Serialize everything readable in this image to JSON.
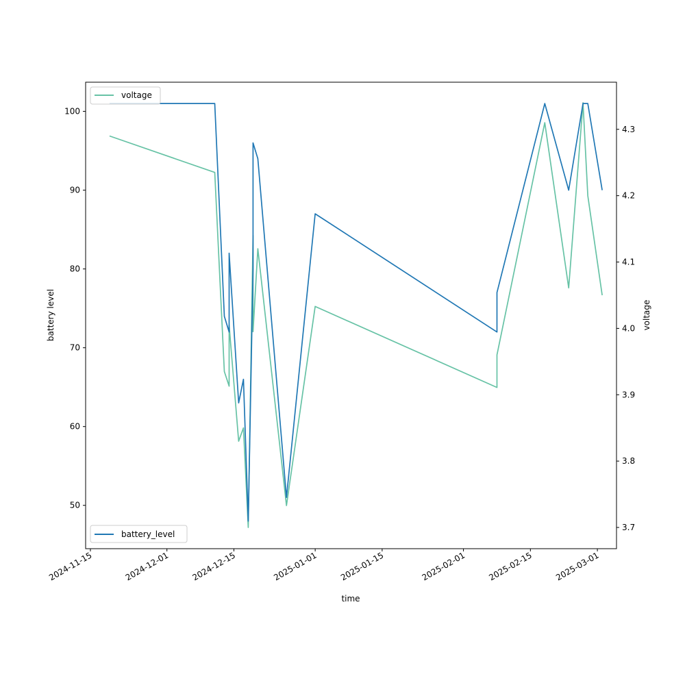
{
  "chart_data": {
    "type": "line",
    "xlabel": "time",
    "ylabel_left": "battery level",
    "ylabel_right": "voltage",
    "x_range": [
      "2024-11-14",
      "2025-03-05"
    ],
    "ylim_left": [
      44.5,
      103.7
    ],
    "ylim_right": [
      3.668,
      4.371
    ],
    "x_ticks": [
      "2024-11-15",
      "2024-12-01",
      "2024-12-15",
      "2025-01-01",
      "2025-01-15",
      "2025-02-01",
      "2025-02-15",
      "2025-03-01"
    ],
    "y_ticks_left": [
      50,
      60,
      70,
      80,
      90,
      100
    ],
    "y_ticks_right": [
      3.7,
      3.8,
      3.9,
      4.0,
      4.1,
      4.2,
      4.3
    ],
    "grid": false,
    "legend_right": {
      "label": "voltage",
      "placement": "upper-left",
      "color": "#66c2a5"
    },
    "legend_left": {
      "label": "battery_level",
      "placement": "lower-left",
      "color": "#1f77b4"
    },
    "series": [
      {
        "name": "battery_level",
        "axis": "left",
        "color": "#1f77b4",
        "points": [
          [
            "2024-11-19",
            101
          ],
          [
            "2024-12-11",
            101
          ],
          [
            "2024-12-13",
            74
          ],
          [
            "2024-12-14",
            72
          ],
          [
            "2024-12-14",
            82
          ],
          [
            "2024-12-16",
            63
          ],
          [
            "2024-12-17",
            66
          ],
          [
            "2024-12-18",
            48
          ],
          [
            "2024-12-19",
            80
          ],
          [
            "2024-12-19",
            96
          ],
          [
            "2024-12-20",
            94
          ],
          [
            "2024-12-26",
            51
          ],
          [
            "2025-01-01",
            87
          ],
          [
            "2025-02-08",
            72
          ],
          [
            "2025-02-08",
            77
          ],
          [
            "2025-02-18",
            101
          ],
          [
            "2025-02-23",
            90
          ],
          [
            "2025-02-26",
            101
          ],
          [
            "2025-02-27",
            101
          ],
          [
            "2025-03-02",
            90
          ]
        ]
      },
      {
        "name": "voltage",
        "axis": "right",
        "color": "#66c2a5",
        "points": [
          [
            "2024-11-19",
            4.29
          ],
          [
            "2024-12-11",
            4.235
          ],
          [
            "2024-12-13",
            3.935
          ],
          [
            "2024-12-14",
            3.913
          ],
          [
            "2024-12-14",
            4.005
          ],
          [
            "2024-12-16",
            3.83
          ],
          [
            "2024-12-17",
            3.85
          ],
          [
            "2024-12-18",
            3.7
          ],
          [
            "2024-12-19",
            4.14
          ],
          [
            "2024-12-19",
            3.995
          ],
          [
            "2024-12-20",
            4.12
          ],
          [
            "2024-12-26",
            3.733
          ],
          [
            "2025-01-01",
            4.033
          ],
          [
            "2025-02-08",
            3.911
          ],
          [
            "2025-02-08",
            3.96
          ],
          [
            "2025-02-18",
            4.31
          ],
          [
            "2025-02-23",
            4.061
          ],
          [
            "2025-02-26",
            4.34
          ],
          [
            "2025-02-27",
            4.2
          ],
          [
            "2025-03-02",
            4.05
          ]
        ]
      }
    ]
  }
}
